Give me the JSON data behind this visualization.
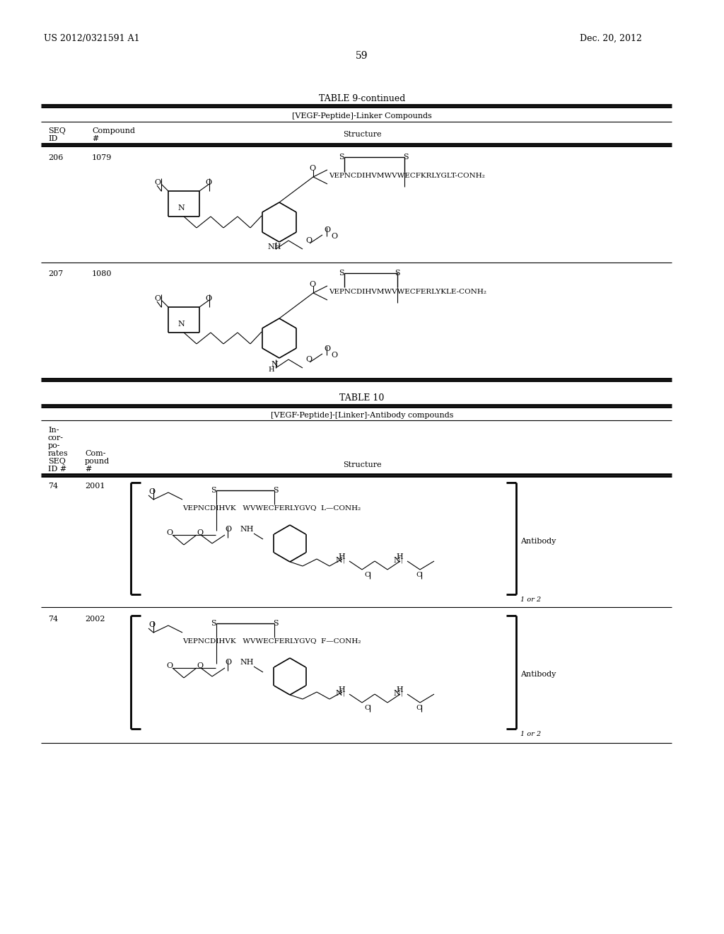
{
  "page_number": "59",
  "patent_number": "US 2012/0321591 A1",
  "patent_date": "Dec. 20, 2012",
  "table9_title": "TABLE 9-continued",
  "table9_subtitle": "[VEGF-Peptide]-Linker Compounds",
  "row1_seq": "206",
  "row1_cmpd": "1079",
  "row1_peptide": "VEPNCDIHVMWVWECFKRLYGLT-CONH₂",
  "row2_seq": "207",
  "row2_cmpd": "1080",
  "row2_peptide": "VEPNCDIHVMWVWECFERLYKLE-CONH₂",
  "table10_title": "TABLE 10",
  "table10_subtitle": "[VEGF-Peptide]-[Linker]-Antibody compounds",
  "row3_seq": "74",
  "row3_cmpd": "2001",
  "row3_peptide": "VEPNCDIHVK   WVWECFERLYGVQ  L—CONH₂",
  "row4_seq": "74",
  "row4_cmpd": "2002",
  "row4_peptide": "VEPNCDIHVK   WVWECFERLYGVQ  F—CONH₂",
  "antibody_label": "Antibody",
  "lor2_label": "1 or 2",
  "background_color": "#ffffff",
  "text_color": "#000000"
}
